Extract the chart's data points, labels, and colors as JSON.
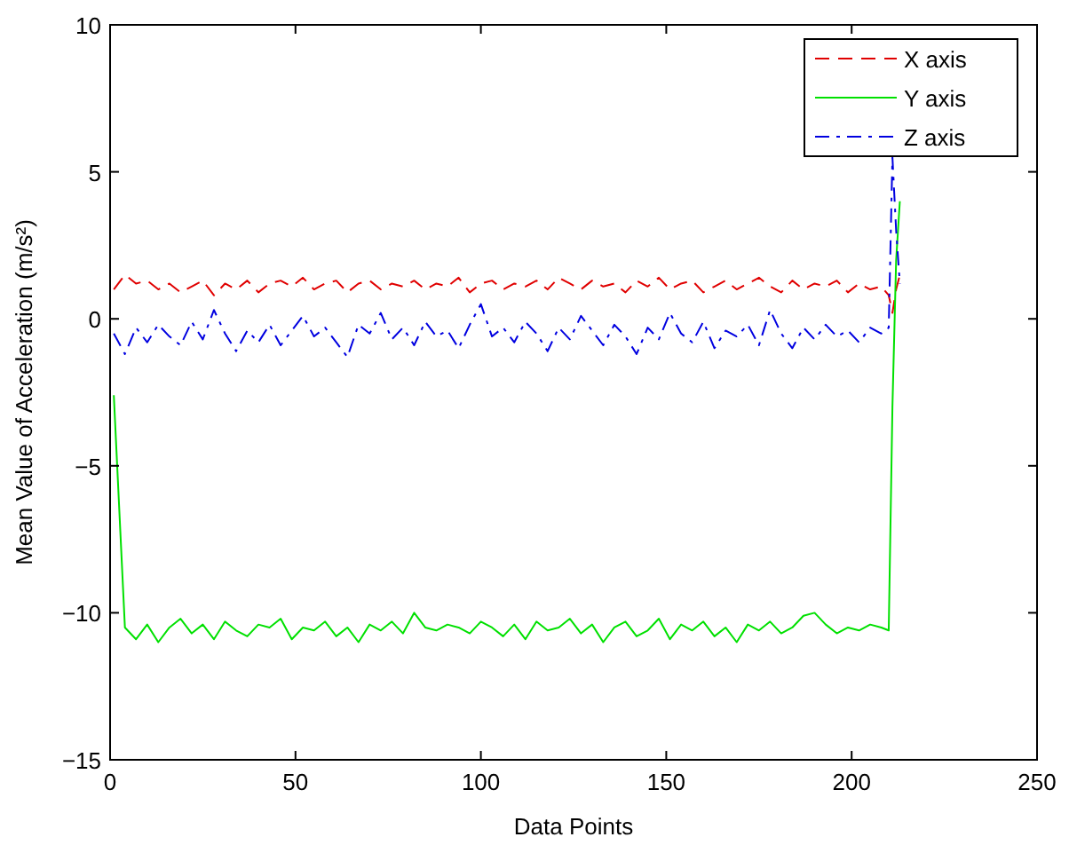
{
  "chart_data": {
    "type": "line",
    "xlabel": "Data Points",
    "ylabel": "Mean Value of Acceleration (m/s²)",
    "xlim": [
      0,
      250
    ],
    "ylim": [
      -15,
      10
    ],
    "xticks": [
      0,
      50,
      100,
      150,
      200,
      250
    ],
    "yticks": [
      {
        "value": -15,
        "label": "−15"
      },
      {
        "value": -10,
        "label": "−10"
      },
      {
        "value": -5,
        "label": "−5"
      },
      0,
      5,
      10
    ],
    "grid": false,
    "legend": "top right",
    "x": [
      1,
      4,
      7,
      10,
      13,
      16,
      19,
      22,
      25,
      28,
      31,
      34,
      37,
      40,
      43,
      46,
      49,
      52,
      55,
      58,
      61,
      64,
      67,
      70,
      73,
      76,
      79,
      82,
      85,
      88,
      91,
      94,
      97,
      100,
      103,
      106,
      109,
      112,
      115,
      118,
      121,
      124,
      127,
      130,
      133,
      136,
      139,
      142,
      145,
      148,
      151,
      154,
      157,
      160,
      163,
      166,
      169,
      172,
      175,
      178,
      181,
      184,
      187,
      190,
      193,
      196,
      199,
      202,
      205,
      208,
      210,
      211,
      212,
      213
    ],
    "series": [
      {
        "name": "X axis",
        "color": "#e00000",
        "line_style": "dashed",
        "values": [
          1.0,
          1.5,
          1.2,
          1.3,
          1.0,
          1.2,
          0.9,
          1.1,
          1.3,
          0.8,
          1.2,
          1.0,
          1.3,
          0.9,
          1.2,
          1.3,
          1.1,
          1.4,
          1.0,
          1.2,
          1.3,
          0.9,
          1.2,
          1.3,
          1.0,
          1.2,
          1.1,
          1.3,
          1.0,
          1.2,
          1.1,
          1.4,
          0.9,
          1.2,
          1.3,
          1.0,
          1.2,
          1.1,
          1.3,
          1.0,
          1.4,
          1.2,
          1.0,
          1.3,
          1.1,
          1.2,
          0.9,
          1.3,
          1.1,
          1.4,
          1.0,
          1.2,
          1.3,
          0.9,
          1.1,
          1.3,
          1.0,
          1.2,
          1.4,
          1.1,
          0.9,
          1.3,
          1.0,
          1.2,
          1.1,
          1.3,
          0.9,
          1.2,
          1.0,
          1.1,
          0.8,
          0.2,
          1.0,
          1.5
        ]
      },
      {
        "name": "Y axis",
        "color": "#00e000",
        "line_style": "solid",
        "values": [
          -2.6,
          -10.5,
          -10.9,
          -10.4,
          -11.0,
          -10.5,
          -10.2,
          -10.7,
          -10.4,
          -10.9,
          -10.3,
          -10.6,
          -10.8,
          -10.4,
          -10.5,
          -10.2,
          -10.9,
          -10.5,
          -10.6,
          -10.3,
          -10.8,
          -10.5,
          -11.0,
          -10.4,
          -10.6,
          -10.3,
          -10.7,
          -10.0,
          -10.5,
          -10.6,
          -10.4,
          -10.5,
          -10.7,
          -10.3,
          -10.5,
          -10.8,
          -10.4,
          -10.9,
          -10.3,
          -10.6,
          -10.5,
          -10.2,
          -10.7,
          -10.4,
          -11.0,
          -10.5,
          -10.3,
          -10.8,
          -10.6,
          -10.2,
          -10.9,
          -10.4,
          -10.6,
          -10.3,
          -10.8,
          -10.5,
          -11.0,
          -10.4,
          -10.6,
          -10.3,
          -10.7,
          -10.5,
          -10.1,
          -10.0,
          -10.4,
          -10.7,
          -10.5,
          -10.6,
          -10.4,
          -10.5,
          -10.6,
          -3,
          2,
          4
        ]
      },
      {
        "name": "Z axis",
        "color": "#0000e0",
        "line_style": "dashdot",
        "values": [
          -0.5,
          -1.2,
          -0.3,
          -0.8,
          -0.2,
          -0.6,
          -0.9,
          -0.1,
          -0.7,
          0.3,
          -0.5,
          -1.1,
          -0.4,
          -0.8,
          -0.2,
          -0.9,
          -0.4,
          0.1,
          -0.6,
          -0.3,
          -0.8,
          -1.3,
          -0.2,
          -0.5,
          0.2,
          -0.7,
          -0.3,
          -0.9,
          -0.1,
          -0.6,
          -0.4,
          -1.0,
          -0.2,
          0.5,
          -0.6,
          -0.3,
          -0.8,
          -0.1,
          -0.5,
          -1.1,
          -0.3,
          -0.7,
          0.1,
          -0.4,
          -0.9,
          -0.2,
          -0.6,
          -1.2,
          -0.3,
          -0.7,
          0.2,
          -0.5,
          -0.8,
          -0.1,
          -1.0,
          -0.4,
          -0.6,
          -0.2,
          -0.9,
          0.3,
          -0.5,
          -1.0,
          -0.3,
          -0.7,
          -0.2,
          -0.6,
          -0.4,
          -0.8,
          -0.3,
          -0.5,
          -0.3,
          5.5,
          3.0,
          1.2
        ]
      }
    ]
  }
}
